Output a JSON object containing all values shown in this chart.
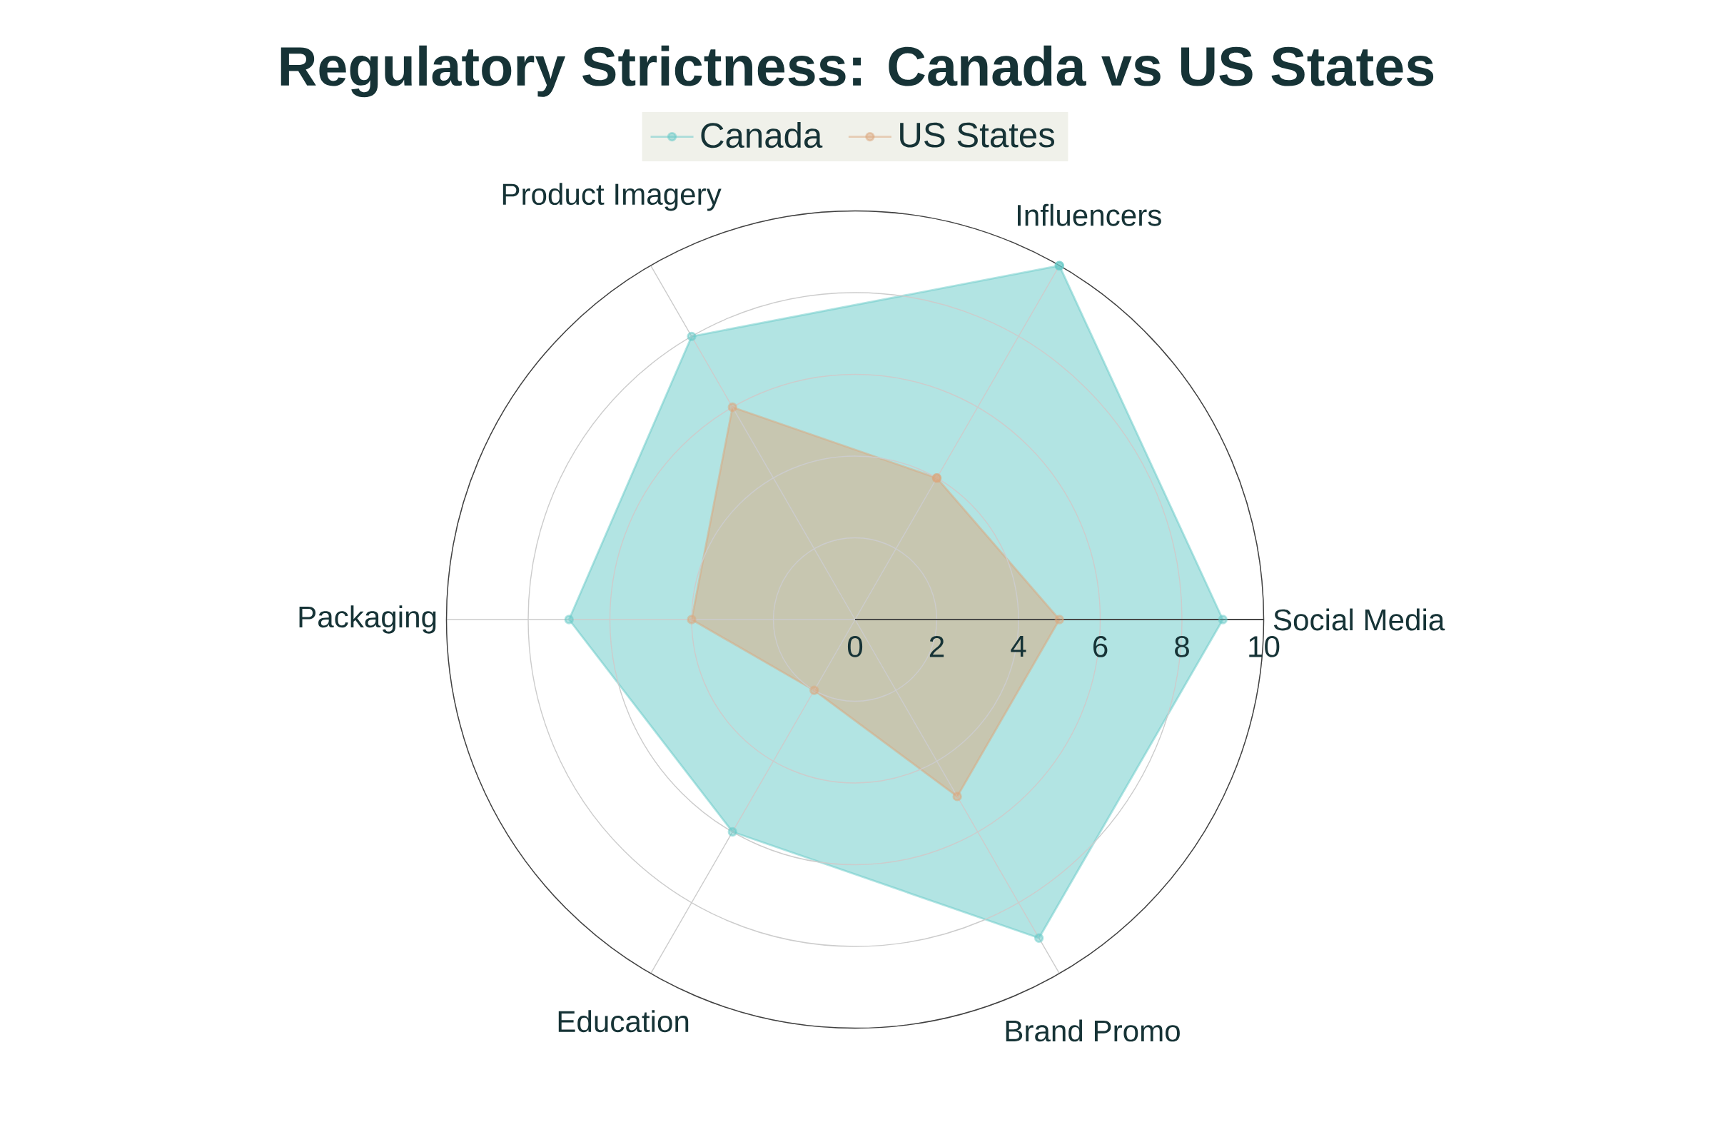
{
  "chart_data": {
    "type": "radar",
    "title": "Regulatory Strictness: Canada vs US States",
    "categories": [
      "Influencers",
      "Social Media",
      "Brand Promo",
      "Education",
      "Packaging",
      "Product Imagery"
    ],
    "series": [
      {
        "name": "Canada",
        "color": "#65c9c7",
        "values": [
          10,
          9,
          9,
          6,
          7,
          8
        ]
      },
      {
        "name": "US States",
        "color": "#dca87d",
        "values": [
          4,
          5,
          5,
          2,
          4,
          6
        ]
      }
    ],
    "ylim": [
      0,
      10
    ],
    "yticks": [
      0,
      2,
      4,
      6,
      8,
      10
    ],
    "grid": true,
    "legend": "top",
    "marker": "circle"
  }
}
